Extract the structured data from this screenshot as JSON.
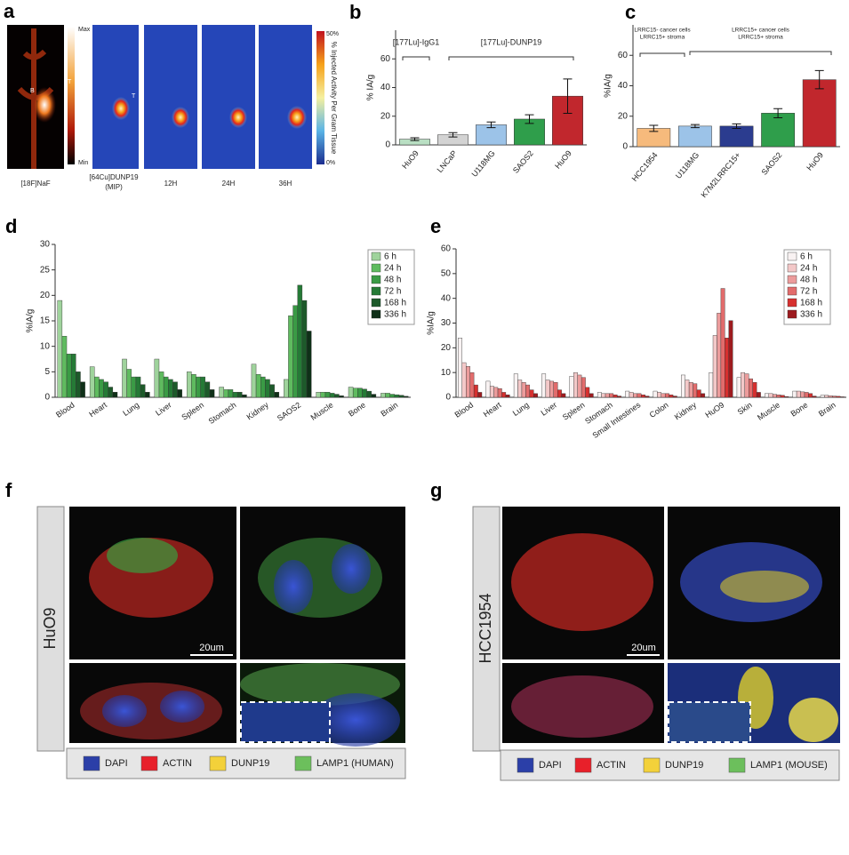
{
  "panel_letters": [
    "a",
    "b",
    "c",
    "d",
    "e",
    "f",
    "g"
  ],
  "panel_a": {
    "image_labels": [
      "[18F]NaF",
      "[64Cu]DUNP19",
      "(MIP)",
      "12H",
      "24H",
      "36H"
    ],
    "colorbar_left": [
      "Max",
      "Min"
    ],
    "colorbar_right": [
      "50%",
      "0%"
    ],
    "colorbar_title": "% Injected Activity Per Gram Tissue",
    "markers": [
      "B",
      "T",
      "T"
    ]
  },
  "chart_data": [
    {
      "type": "bar",
      "ylabel": "% IA/g",
      "categories": [
        "HuO9",
        "LNCaP",
        "U118MG",
        "SAOS2",
        "HuO9"
      ],
      "values": [
        4,
        7,
        14,
        18,
        34
      ],
      "errors": [
        1,
        1.5,
        2,
        3,
        12
      ],
      "colors": [
        "#b9dfc3",
        "#d3d3d3",
        "#9cc3e8",
        "#2f9e4b",
        "#c1272d"
      ],
      "ylim": [
        0,
        80
      ],
      "yticks": [
        0,
        20,
        40,
        60
      ],
      "annotations": [
        [
          "[177Lu]-IgG1"
        ],
        [
          "[177Lu]-DUNP19"
        ]
      ]
    },
    {
      "type": "bar",
      "ylabel": "%IA/g",
      "categories": [
        "HCC1954",
        "U118MG",
        "K7M2LRRC15+",
        "SAOS2",
        "HuO9"
      ],
      "values": [
        12,
        13.5,
        13.5,
        22,
        44
      ],
      "errors": [
        2,
        1,
        1.5,
        3,
        6
      ],
      "colors": [
        "#f6ba7c",
        "#9cc3e8",
        "#2b3c8f",
        "#2f9e4b",
        "#c1272d"
      ],
      "ylim": [
        0,
        80
      ],
      "yticks": [
        0,
        20,
        40,
        60
      ],
      "annotations": [
        [
          "LRRC15- cancer cells",
          "LRRC15+ stroma"
        ],
        [
          "LRRC15+ cancer cells",
          "LRRC15+ stroma"
        ]
      ]
    },
    {
      "type": "grouped-bar",
      "ylabel": "%IA/g",
      "categories": [
        "Blood",
        "Heart",
        "Lung",
        "Liver",
        "Spleen",
        "Stomach",
        "Kidney",
        "SAOS2",
        "Muscle",
        "Bone",
        "Brain"
      ],
      "ylim": [
        0,
        30
      ],
      "yticks": [
        0,
        5,
        10,
        15,
        20,
        25,
        30
      ],
      "legend": "upper right",
      "series": [
        {
          "name": "6 h",
          "color": "#9fd39c",
          "values": [
            19,
            6,
            7.5,
            7.5,
            5,
            2,
            6.5,
            3.5,
            1,
            2,
            0.8
          ]
        },
        {
          "name": "24 h",
          "color": "#5fbb5f",
          "values": [
            12,
            4,
            5.5,
            5,
            4.5,
            1.5,
            4.5,
            16,
            1,
            1.8,
            0.8
          ]
        },
        {
          "name": "48 h",
          "color": "#3a9b45",
          "values": [
            8.5,
            3.5,
            4,
            4,
            4,
            1.5,
            4,
            18,
            1,
            1.8,
            0.6
          ]
        },
        {
          "name": "72 h",
          "color": "#257a36",
          "values": [
            8.5,
            3,
            4,
            3.5,
            4,
            1,
            3.5,
            22,
            0.8,
            1.6,
            0.5
          ]
        },
        {
          "name": "168 h",
          "color": "#1d5a2a",
          "values": [
            5,
            2,
            2.5,
            3,
            3,
            1,
            2.5,
            19,
            0.6,
            1.2,
            0.4
          ]
        },
        {
          "name": "336 h",
          "color": "#0f3018",
          "values": [
            3,
            1,
            1,
            1.5,
            1.5,
            0.5,
            1,
            13,
            0.3,
            0.6,
            0.2
          ]
        }
      ]
    },
    {
      "type": "grouped-bar",
      "ylabel": "%IA/g",
      "categories": [
        "Blood",
        "Heart",
        "Lung",
        "Liver",
        "Spleen",
        "Stomach",
        "Small Intestines",
        "Colon",
        "Kidney",
        "HuO9",
        "Skin",
        "Muscle",
        "Bone",
        "Brain"
      ],
      "ylim": [
        0,
        60
      ],
      "yticks": [
        0,
        10,
        20,
        30,
        40,
        50,
        60
      ],
      "legend": "upper right",
      "series": [
        {
          "name": "6 h",
          "color": "#f8f2f2",
          "values": [
            24,
            6.5,
            9.5,
            9.5,
            8.5,
            2,
            2.5,
            2.5,
            9,
            10,
            8,
            1.5,
            2.5,
            0.8
          ]
        },
        {
          "name": "24 h",
          "color": "#f3c8c8",
          "values": [
            14,
            4.5,
            7,
            7,
            10,
            1.5,
            2,
            2,
            7,
            25,
            10,
            1.5,
            2.5,
            0.8
          ]
        },
        {
          "name": "48 h",
          "color": "#ec9c9c",
          "values": [
            12.5,
            4,
            6,
            6.5,
            9,
            1.5,
            1.5,
            1.5,
            6,
            34,
            9.5,
            1.2,
            2.2,
            0.6
          ]
        },
        {
          "name": "72 h",
          "color": "#e26c6c",
          "values": [
            10,
            3.5,
            5,
            6,
            8,
            1.5,
            1.5,
            1.5,
            5.5,
            44,
            7.5,
            1,
            2,
            0.5
          ]
        },
        {
          "name": "168 h",
          "color": "#d6302f",
          "values": [
            5,
            2,
            3,
            3,
            4,
            1,
            1,
            1,
            3,
            24,
            6,
            0.8,
            1.5,
            0.4
          ]
        },
        {
          "name": "336 h",
          "color": "#9d1b1f",
          "values": [
            2,
            1,
            1.5,
            1.5,
            1.5,
            0.5,
            0.5,
            0.5,
            1.5,
            31,
            2,
            0.3,
            0.5,
            0.2
          ]
        }
      ]
    }
  ],
  "panel_f": {
    "side_label": "HuO9",
    "scale_bar": "20um",
    "legend": [
      {
        "label": "DAPI",
        "color": "#2b3fa8"
      },
      {
        "label": "ACTIN",
        "color": "#e8202a"
      },
      {
        "label": "DUNP19",
        "color": "#f3d13a"
      },
      {
        "label": "LAMP1 (HUMAN)",
        "color": "#6cbf5c"
      }
    ]
  },
  "panel_g": {
    "side_label": "HCC1954",
    "scale_bar": "20um",
    "legend": [
      {
        "label": "DAPI",
        "color": "#2b3fa8"
      },
      {
        "label": "ACTIN",
        "color": "#e8202a"
      },
      {
        "label": "DUNP19",
        "color": "#f3d13a"
      },
      {
        "label": "LAMP1 (MOUSE)",
        "color": "#6cbf5c"
      }
    ]
  }
}
